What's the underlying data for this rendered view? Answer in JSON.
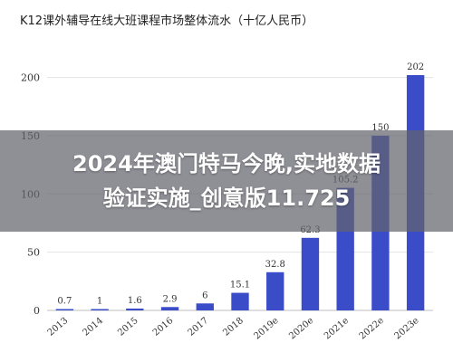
{
  "chart_data": {
    "type": "bar",
    "title": "K12课外辅导在线大班课程市场整体流水（十亿人民币）",
    "xlabel": "",
    "ylabel": "",
    "categories": [
      "2013",
      "2014",
      "2015",
      "2016",
      "2017",
      "2018",
      "2019e",
      "2020e",
      "2021e",
      "2022e",
      "2023e"
    ],
    "values": [
      0.7,
      1,
      1.6,
      2.9,
      6,
      15.1,
      32.8,
      62.3,
      105.2,
      150,
      202
    ],
    "value_labels": [
      "0.7",
      "1",
      "1.6",
      "2.9",
      "6",
      "15.1",
      "32.8",
      "62.3",
      "105.2",
      "150",
      "202"
    ],
    "ylim": [
      0,
      202
    ],
    "yticks": [
      0,
      50,
      100,
      150,
      200
    ],
    "ytick_labels": [
      "0",
      "50",
      "100",
      "150",
      "200"
    ],
    "grid": true,
    "legend": "none",
    "bar_color": "#3b4cc8"
  },
  "overlay": {
    "line1": "2024年澳门特马今晚,实地数据",
    "line2": "验证实施_创意版11.725"
  }
}
